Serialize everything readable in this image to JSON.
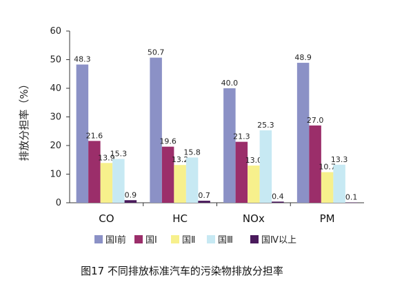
{
  "chart_data": {
    "type": "bar",
    "categories": [
      "CO",
      "HC",
      "NOx",
      "PM"
    ],
    "series": [
      {
        "name": "国Ⅰ前",
        "color": "#8b91c6",
        "values": [
          48.3,
          50.7,
          40.0,
          48.9
        ],
        "labels": [
          "48.3",
          "50.7",
          "40.0",
          "48.9"
        ]
      },
      {
        "name": "国Ⅰ",
        "color": "#9b2e6a",
        "values": [
          21.6,
          19.6,
          21.3,
          27.0
        ],
        "labels": [
          "21.6",
          "19.6",
          "21.3",
          "27.0"
        ]
      },
      {
        "name": "国Ⅱ",
        "color": "#f7f08c",
        "values": [
          13.9,
          13.2,
          13.0,
          10.7
        ],
        "labels": [
          "13.9",
          "13.2",
          "13.0",
          "10.7"
        ]
      },
      {
        "name": "国Ⅲ",
        "color": "#c7e9f3",
        "values": [
          15.3,
          15.8,
          25.3,
          13.3
        ],
        "labels": [
          "15.3",
          "15.8",
          "25.3",
          "13.3"
        ]
      },
      {
        "name": "国Ⅳ以上",
        "color": "#4a1a5c",
        "values": [
          0.9,
          0.7,
          0.4,
          0.1
        ],
        "labels": [
          "0.9",
          "0.7",
          "0.4",
          "0.1"
        ]
      }
    ],
    "ylabel": "排放分担率（%）",
    "ylim": [
      0,
      60
    ],
    "yticks": [
      "0",
      "10",
      "20",
      "30",
      "40",
      "50",
      "60"
    ],
    "grid": false,
    "legend": "bottom"
  },
  "caption": "图17 不同排放标准汽车的污染物排放分担率"
}
